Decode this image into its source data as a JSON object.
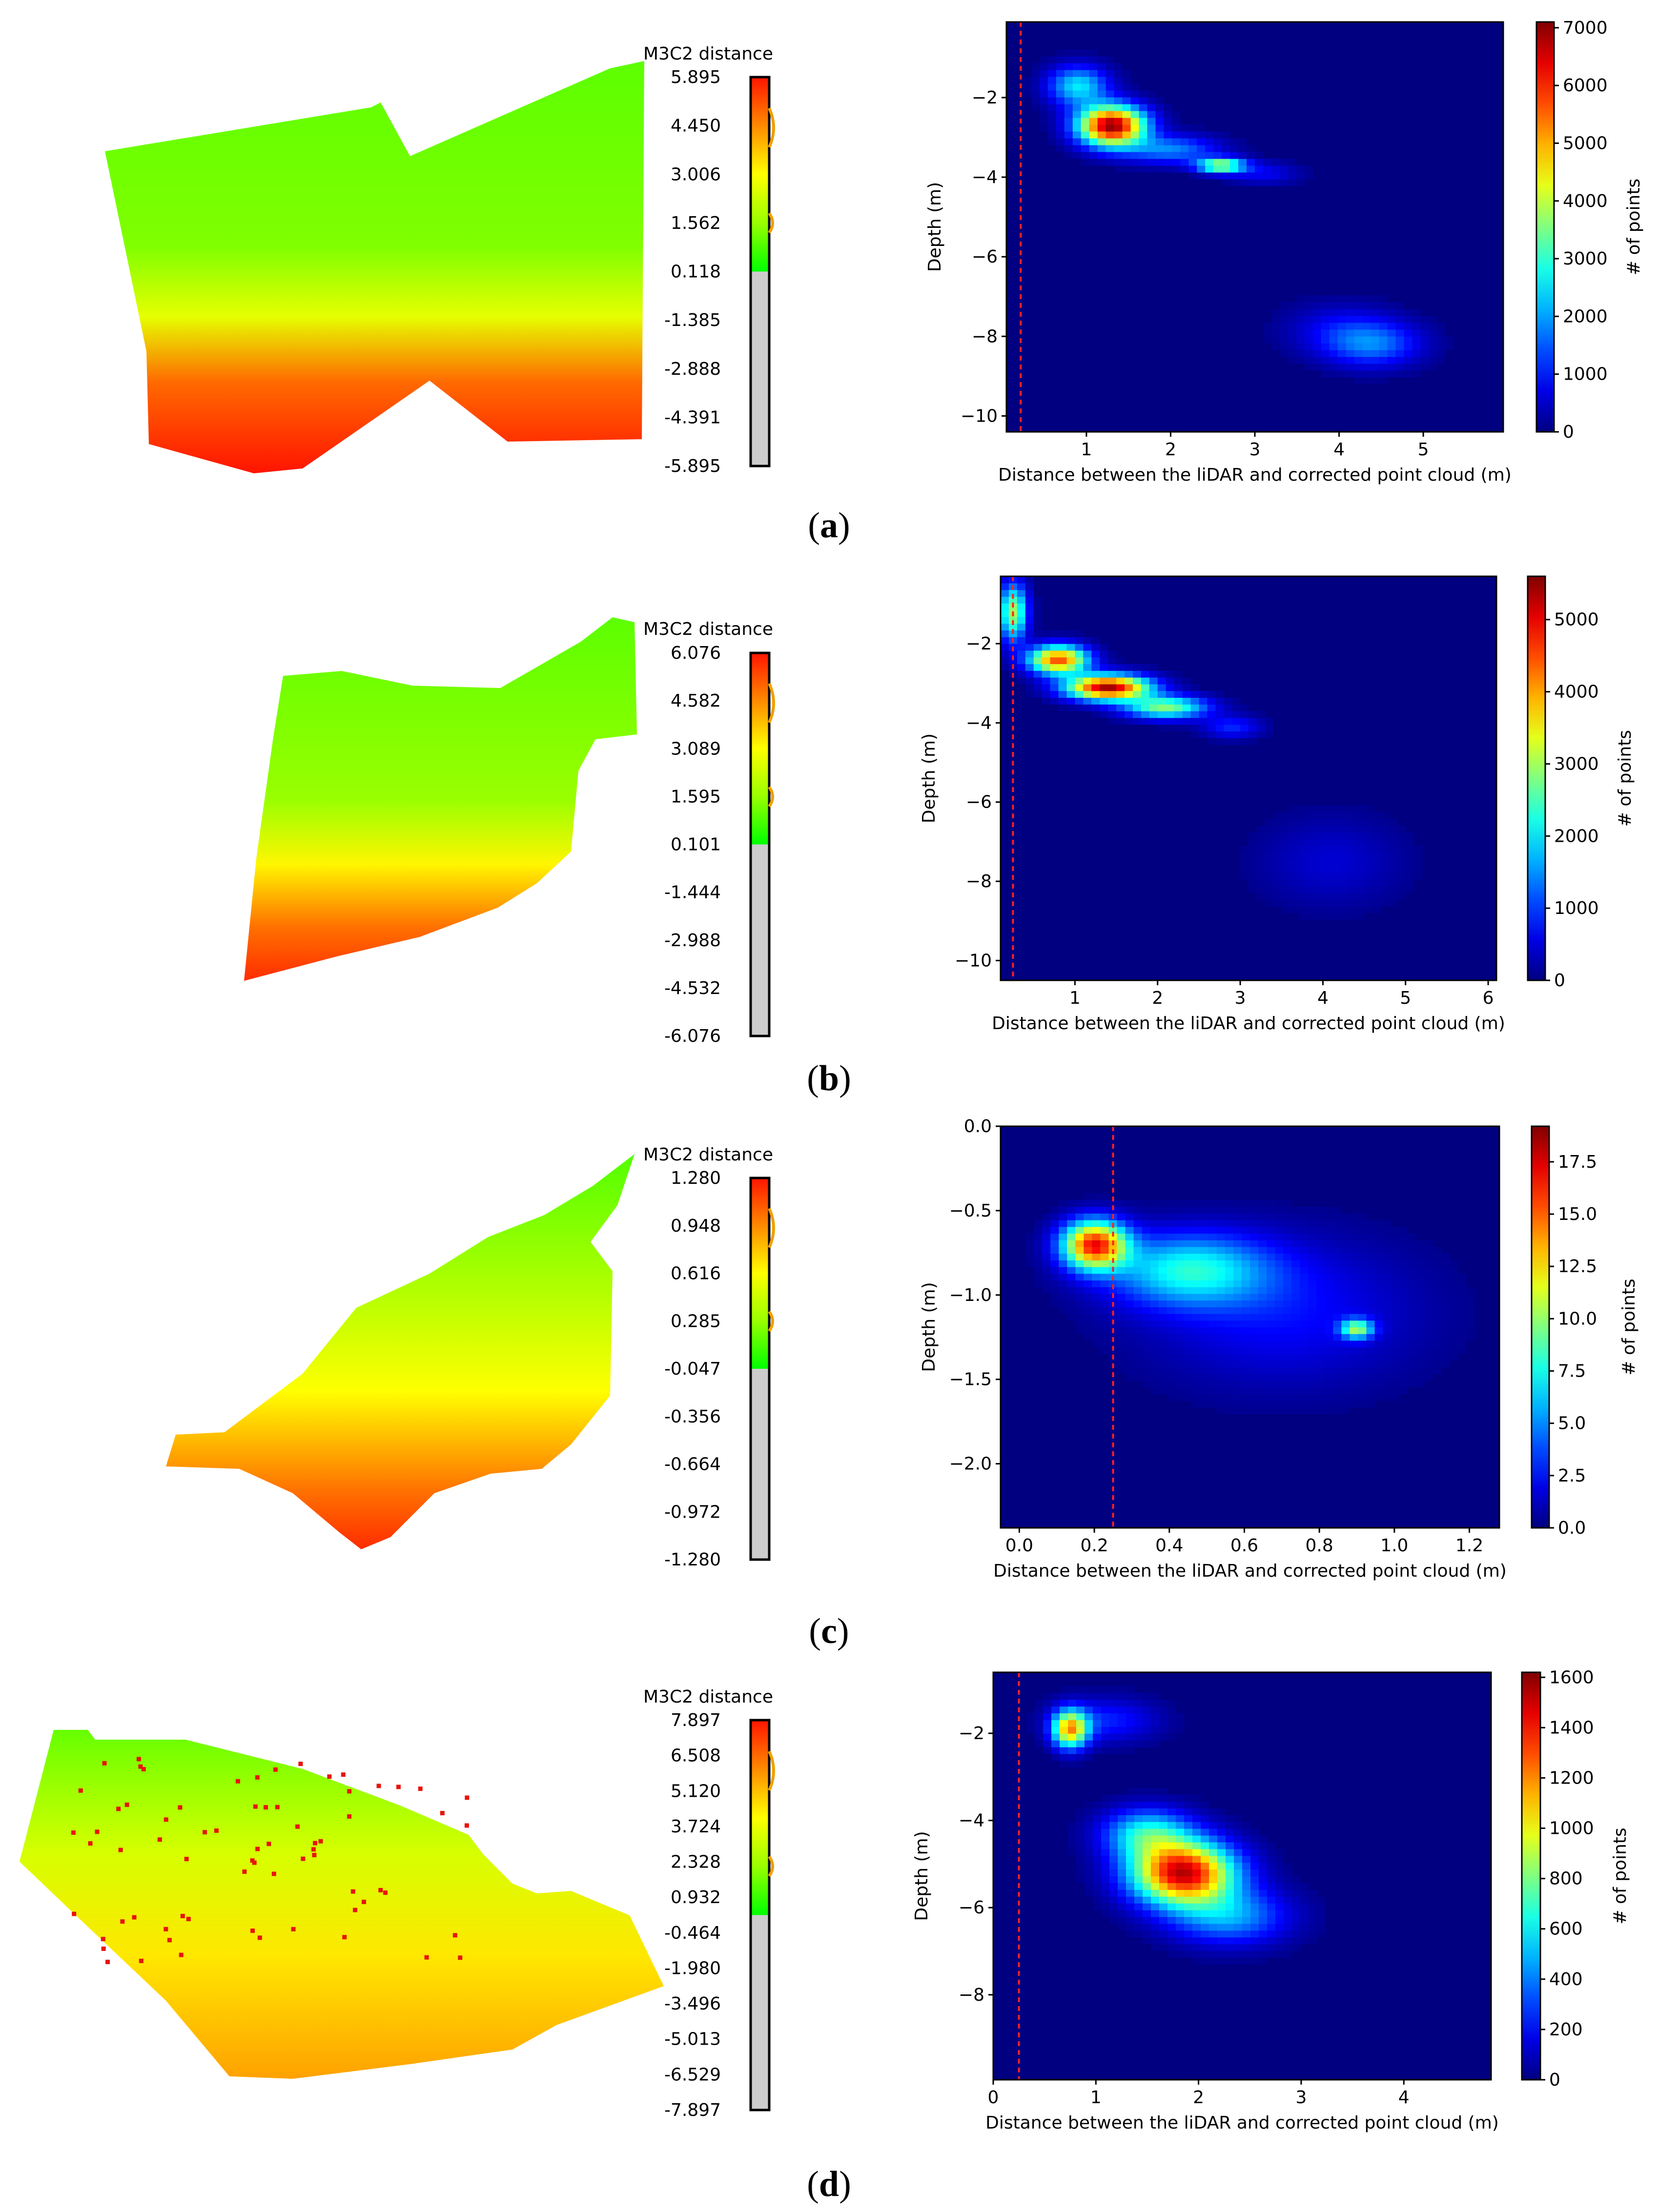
{
  "panels": [
    {
      "label": "a",
      "m3c2": {
        "title": "M3C2 distance",
        "ticks": [
          "5.895",
          "4.450",
          "3.006",
          "1.562",
          "0.118",
          "-1.385",
          "-2.888",
          "-4.391",
          "-5.895"
        ],
        "colored_fraction": 0.5
      },
      "chart_data": {
        "type": "heatmap",
        "xlabel": "Distance between the liDAR and corrected point cloud (m)",
        "ylabel": "Depth (m)",
        "colorbar_label": "# of points",
        "xlim": [
          0.05,
          5.95
        ],
        "ylim": [
          -10.4,
          -0.1
        ],
        "xticks": [
          1,
          2,
          3,
          4,
          5
        ],
        "yticks": [
          -2,
          -4,
          -6,
          -8,
          -10
        ],
        "cbar_max": 7100,
        "cbar_ticks": [
          0,
          1000,
          2000,
          3000,
          4000,
          5000,
          6000,
          7000
        ],
        "reference_line_x": 0.22,
        "clusters": [
          {
            "x": 1.3,
            "y": -2.7,
            "sx": 0.28,
            "sy": 0.35,
            "peak": 7000
          },
          {
            "x": 0.9,
            "y": -1.7,
            "sx": 0.25,
            "sy": 0.35,
            "peak": 2500
          },
          {
            "x": 2.0,
            "y": -3.3,
            "sx": 0.4,
            "sy": 0.25,
            "peak": 1800
          },
          {
            "x": 2.6,
            "y": -3.7,
            "sx": 0.2,
            "sy": 0.13,
            "peak": 3800
          },
          {
            "x": 3.1,
            "y": -3.9,
            "sx": 0.3,
            "sy": 0.2,
            "peak": 800
          },
          {
            "x": 4.4,
            "y": -8.2,
            "sx": 0.4,
            "sy": 0.4,
            "peak": 1600
          },
          {
            "x": 4.0,
            "y": -7.8,
            "sx": 0.45,
            "sy": 0.45,
            "peak": 700
          }
        ]
      }
    },
    {
      "label": "b",
      "m3c2": {
        "title": "M3C2 distance",
        "ticks": [
          "6.076",
          "4.582",
          "3.089",
          "1.595",
          "0.101",
          "-1.444",
          "-2.988",
          "-4.532",
          "-6.076"
        ],
        "colored_fraction": 0.5
      },
      "chart_data": {
        "type": "heatmap",
        "xlabel": "Distance between the liDAR and corrected point cloud (m)",
        "ylabel": "Depth (m)",
        "colorbar_label": "# of points",
        "xlim": [
          0.1,
          6.1
        ],
        "ylim": [
          -10.5,
          -0.3
        ],
        "xticks": [
          1,
          2,
          3,
          4,
          5,
          6
        ],
        "yticks": [
          -2,
          -4,
          -6,
          -8,
          -10
        ],
        "cbar_max": 5600,
        "cbar_ticks": [
          0,
          1000,
          2000,
          3000,
          4000,
          5000
        ],
        "reference_line_x": 0.25,
        "clusters": [
          {
            "x": 0.25,
            "y": -1.2,
            "sx": 0.12,
            "sy": 0.5,
            "peak": 3000
          },
          {
            "x": 0.8,
            "y": -2.4,
            "sx": 0.25,
            "sy": 0.25,
            "peak": 4500
          },
          {
            "x": 1.4,
            "y": -3.1,
            "sx": 0.35,
            "sy": 0.22,
            "peak": 5400
          },
          {
            "x": 2.1,
            "y": -3.6,
            "sx": 0.35,
            "sy": 0.2,
            "peak": 2800
          },
          {
            "x": 2.9,
            "y": -4.1,
            "sx": 0.25,
            "sy": 0.2,
            "peak": 900
          },
          {
            "x": 4.1,
            "y": -7.5,
            "sx": 0.6,
            "sy": 0.8,
            "peak": 450
          }
        ]
      }
    },
    {
      "label": "c",
      "m3c2": {
        "title": "M3C2 distance",
        "ticks": [
          "1.280",
          "0.948",
          "0.616",
          "0.285",
          "-0.047",
          "-0.356",
          "-0.664",
          "-0.972",
          "-1.280"
        ],
        "colored_fraction": 0.5
      },
      "chart_data": {
        "type": "heatmap",
        "xlabel": "Distance between the liDAR and corrected point cloud (m)",
        "ylabel": "Depth (m)",
        "colorbar_label": "# of points",
        "xlim": [
          -0.05,
          1.28
        ],
        "ylim": [
          -2.38,
          0.0
        ],
        "xticks": [
          0.0,
          0.2,
          0.4,
          0.6,
          0.8,
          1.0,
          1.2
        ],
        "yticks": [
          0.0,
          -0.5,
          -1.0,
          -1.5,
          -2.0
        ],
        "cbar_max": 19.2,
        "cbar_ticks": [
          0.0,
          2.5,
          5.0,
          7.5,
          10.0,
          12.5,
          15.0,
          17.5
        ],
        "reference_line_x": 0.25,
        "clusters": [
          {
            "x": 0.2,
            "y": -0.7,
            "sx": 0.06,
            "sy": 0.1,
            "peak": 16
          },
          {
            "x": 0.45,
            "y": -0.85,
            "sx": 0.15,
            "sy": 0.15,
            "peak": 7
          },
          {
            "x": 0.9,
            "y": -1.2,
            "sx": 0.03,
            "sy": 0.04,
            "peak": 9
          },
          {
            "x": 0.7,
            "y": -1.1,
            "sx": 0.25,
            "sy": 0.3,
            "peak": 2.5
          }
        ]
      }
    },
    {
      "label": "d",
      "m3c2": {
        "title": "M3C2 distance",
        "ticks": [
          "7.897",
          "6.508",
          "5.120",
          "3.724",
          "2.328",
          "0.932",
          "-0.464",
          "-1.980",
          "-3.496",
          "-5.013",
          "-6.529",
          "-7.897"
        ],
        "colored_fraction": 0.5
      },
      "chart_data": {
        "type": "heatmap",
        "xlabel": "Distance between the liDAR and corrected point cloud (m)",
        "ylabel": "Depth (m)",
        "colorbar_label": "# of points",
        "xlim": [
          0.0,
          4.85
        ],
        "ylim": [
          -9.95,
          -0.6
        ],
        "xticks": [
          0,
          1,
          2,
          3,
          4
        ],
        "yticks": [
          -2,
          -4,
          -6,
          -8
        ],
        "cbar_max": 1620,
        "cbar_ticks": [
          0,
          200,
          400,
          600,
          800,
          1000,
          1200,
          1400,
          1600
        ],
        "reference_line_x": 0.25,
        "clusters": [
          {
            "x": 0.75,
            "y": -1.9,
            "sx": 0.12,
            "sy": 0.3,
            "peak": 1100
          },
          {
            "x": 1.1,
            "y": -1.7,
            "sx": 0.35,
            "sy": 0.35,
            "peak": 250
          },
          {
            "x": 1.85,
            "y": -5.2,
            "sx": 0.35,
            "sy": 0.5,
            "peak": 1500
          },
          {
            "x": 1.5,
            "y": -4.3,
            "sx": 0.3,
            "sy": 0.4,
            "peak": 600
          },
          {
            "x": 2.3,
            "y": -6.2,
            "sx": 0.4,
            "sy": 0.45,
            "peak": 450
          }
        ]
      }
    }
  ]
}
